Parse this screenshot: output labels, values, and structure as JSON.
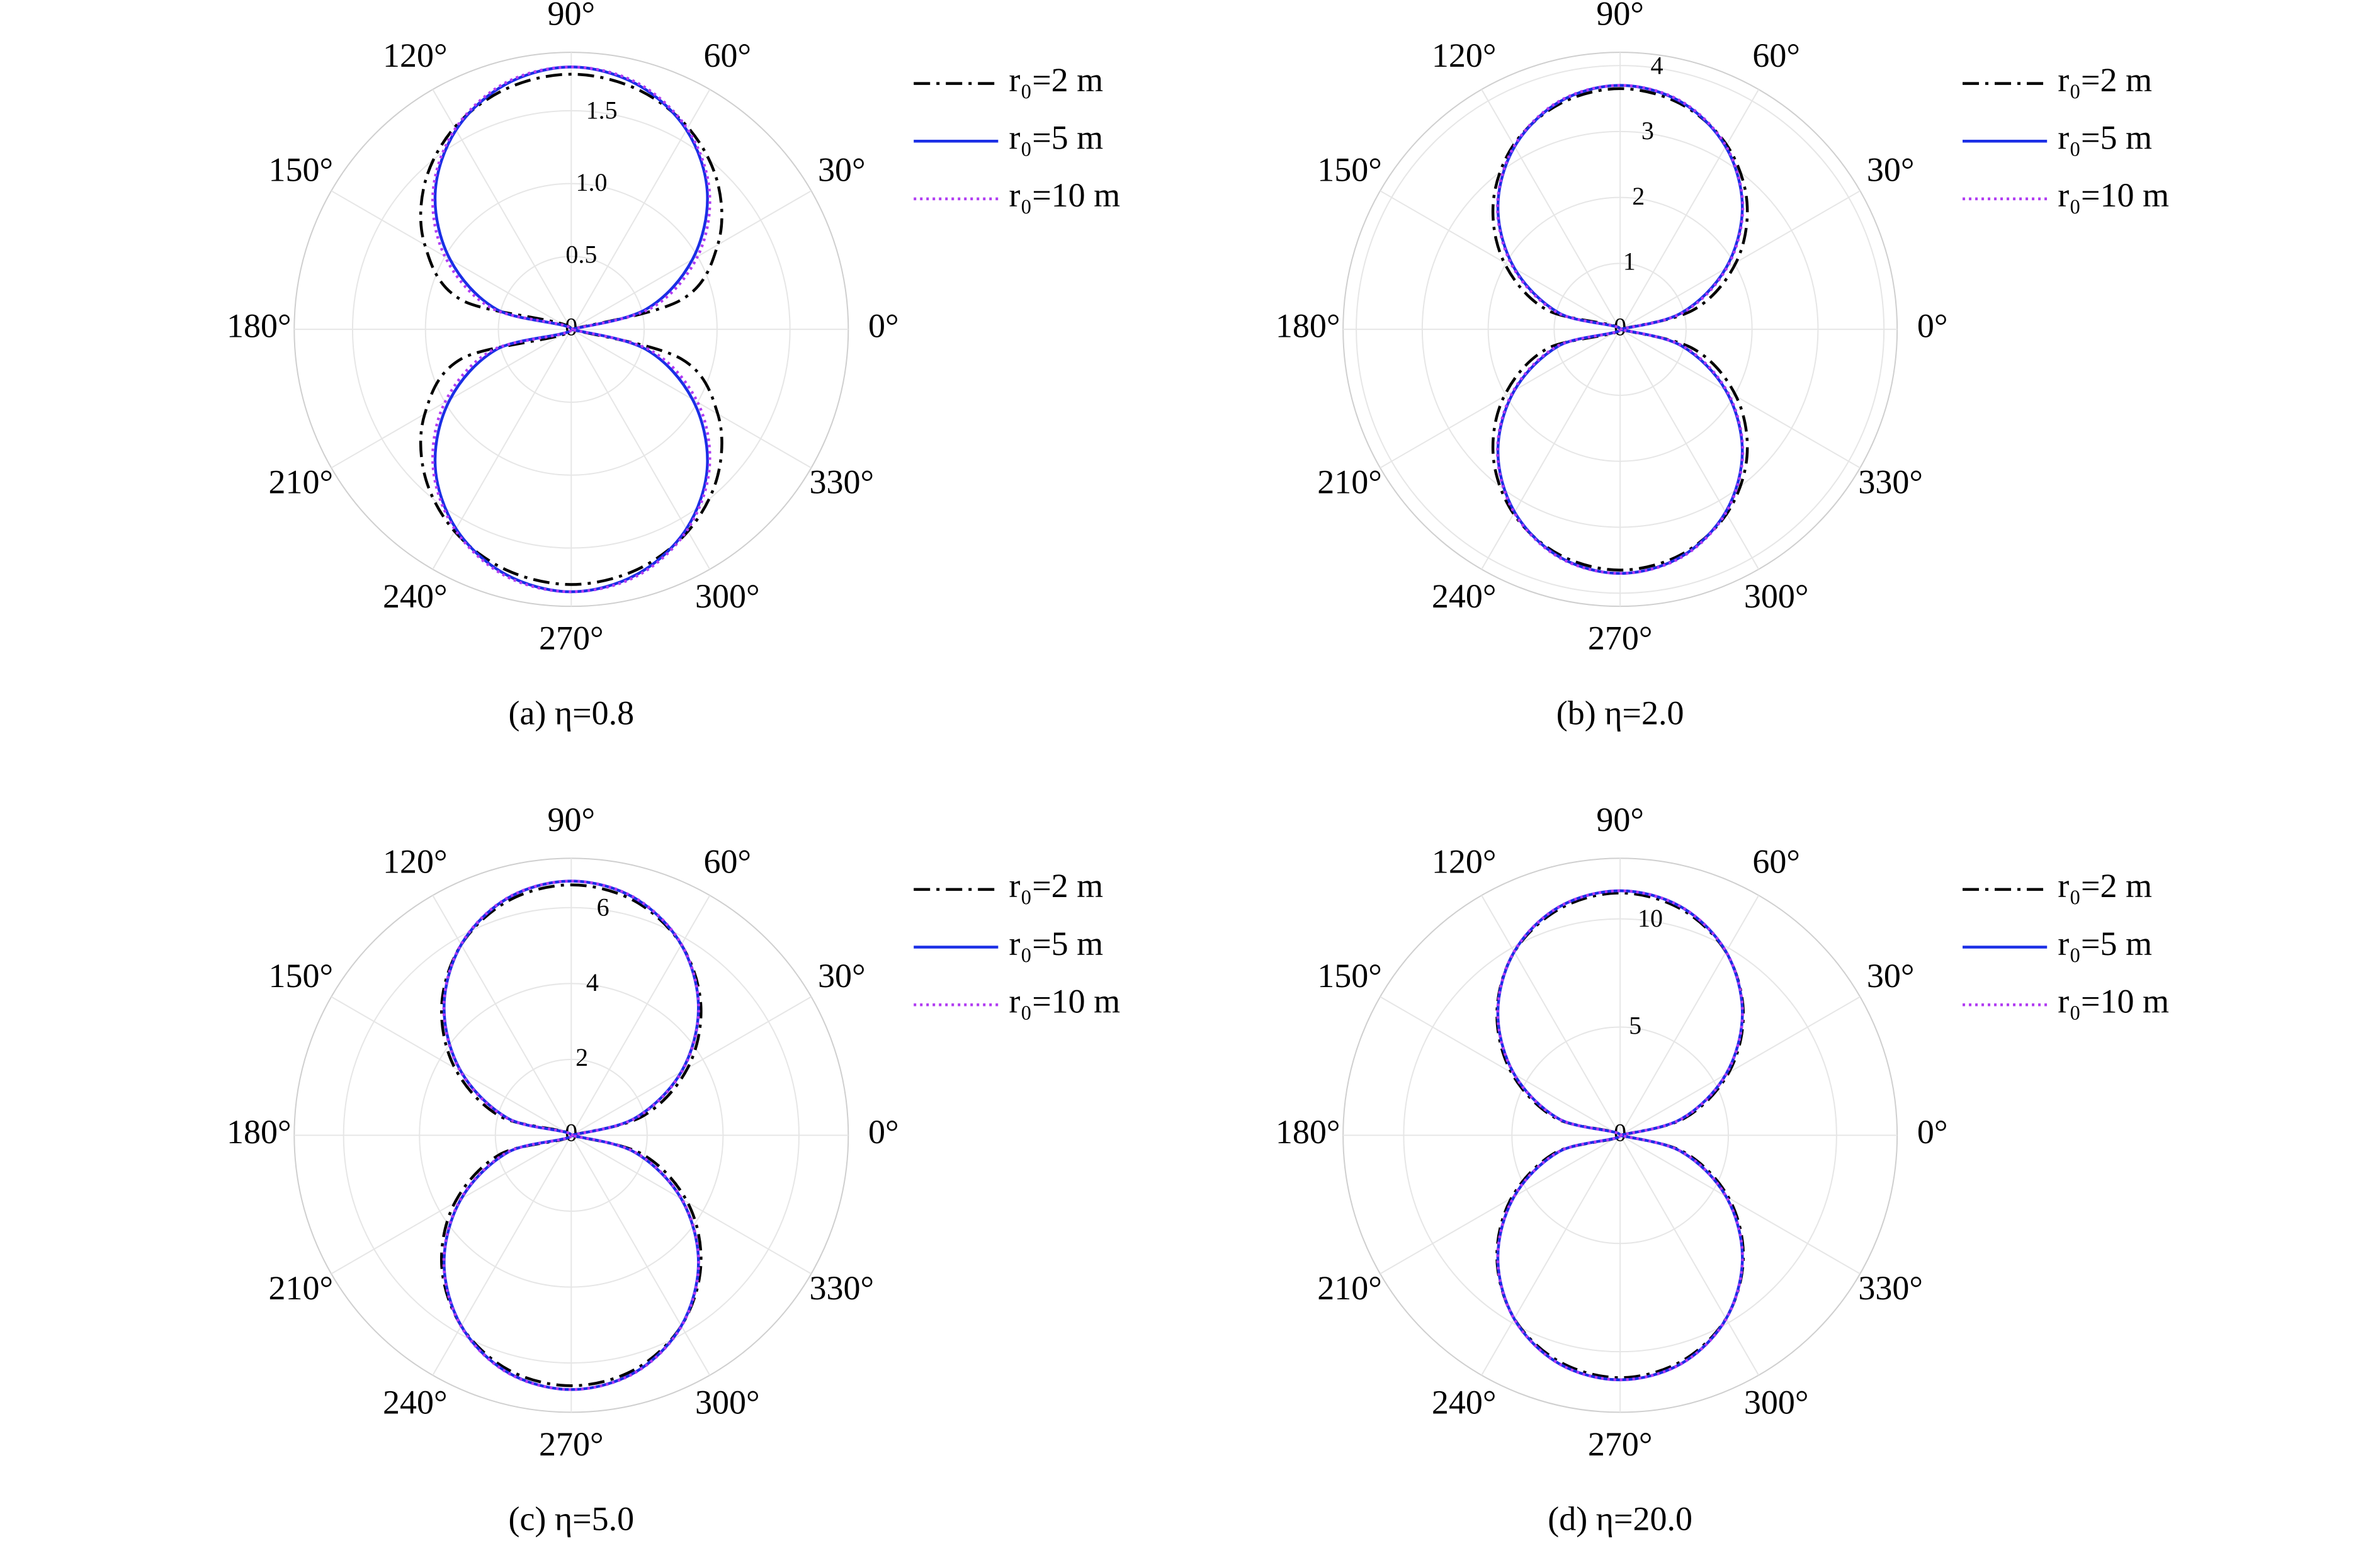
{
  "chart_data": [
    {
      "type": "polar",
      "title": "(a) η=0.8",
      "x": [
        0,
        15,
        30,
        45,
        60,
        75,
        90,
        105,
        120,
        135,
        150,
        165,
        180,
        195,
        210,
        225,
        240,
        255,
        270,
        285,
        300,
        315,
        330,
        345,
        360
      ],
      "xlim": [
        0,
        360
      ],
      "xticks": [
        {
          "value": 0,
          "label": "0°"
        },
        {
          "value": 30,
          "label": "30°"
        },
        {
          "value": 60,
          "label": "60°"
        },
        {
          "value": 90,
          "label": "90°"
        },
        {
          "value": 120,
          "label": "120°"
        },
        {
          "value": 150,
          "label": "150°"
        },
        {
          "value": 180,
          "label": "180°"
        },
        {
          "value": 210,
          "label": "210°"
        },
        {
          "value": 240,
          "label": "240°"
        },
        {
          "value": 270,
          "label": "270°"
        },
        {
          "value": 300,
          "label": "300°"
        },
        {
          "value": 330,
          "label": "330°"
        }
      ],
      "ylim": [
        0,
        1.9
      ],
      "yticks": [
        0,
        0.5,
        {
          "value": 1,
          "label": "1.0"
        },
        1.5
      ],
      "grid": true,
      "series": [
        {
          "name": "r₀=2 m",
          "color": "#000000",
          "linestyle": "dashdot",
          "values": [
            0,
            0.78,
            1.16,
            1.42,
            1.6,
            1.71,
            1.75,
            1.71,
            1.6,
            1.42,
            1.16,
            0.78,
            0,
            0.78,
            1.16,
            1.42,
            1.6,
            1.71,
            1.75,
            1.71,
            1.6,
            1.42,
            1.16,
            0.78,
            0
          ]
        },
        {
          "name": "r₀=5 m",
          "color": "#1a2ee6",
          "linestyle": "solid",
          "values": [
            0,
            0.53,
            0.96,
            1.32,
            1.58,
            1.74,
            1.8,
            1.74,
            1.58,
            1.32,
            0.96,
            0.53,
            0,
            0.53,
            0.96,
            1.32,
            1.58,
            1.74,
            1.8,
            1.74,
            1.58,
            1.32,
            0.96,
            0.53,
            0
          ]
        },
        {
          "name": "r₀=10 m",
          "color": "#b13cf2",
          "linestyle": "dotted",
          "values": [
            0,
            0.57,
            1.0,
            1.34,
            1.59,
            1.75,
            1.8,
            1.75,
            1.59,
            1.34,
            1.0,
            0.57,
            0,
            0.57,
            1.0,
            1.34,
            1.59,
            1.75,
            1.8,
            1.75,
            1.59,
            1.34,
            1.0,
            0.57,
            0
          ]
        }
      ]
    },
    {
      "type": "polar",
      "title": "(b) η=2.0",
      "x": [
        0,
        15,
        30,
        45,
        60,
        75,
        90,
        105,
        120,
        135,
        150,
        165,
        180,
        195,
        210,
        225,
        240,
        255,
        270,
        285,
        300,
        315,
        330,
        345,
        360
      ],
      "xlim": [
        0,
        360
      ],
      "xticks": [
        {
          "value": 0,
          "label": "0°"
        },
        {
          "value": 30,
          "label": "30°"
        },
        {
          "value": 60,
          "label": "60°"
        },
        {
          "value": 90,
          "label": "90°"
        },
        {
          "value": 120,
          "label": "120°"
        },
        {
          "value": 150,
          "label": "150°"
        },
        {
          "value": 180,
          "label": "180°"
        },
        {
          "value": 210,
          "label": "210°"
        },
        {
          "value": 240,
          "label": "240°"
        },
        {
          "value": 270,
          "label": "270°"
        },
        {
          "value": 300,
          "label": "300°"
        },
        {
          "value": 330,
          "label": "330°"
        }
      ],
      "ylim": [
        0,
        4.2
      ],
      "yticks": [
        0,
        1,
        2,
        3,
        4
      ],
      "grid": true,
      "series": [
        {
          "name": "r₀=2 m",
          "color": "#000000",
          "linestyle": "dashdot",
          "values": [
            0,
            1.16,
            2.03,
            2.72,
            3.23,
            3.54,
            3.65,
            3.54,
            3.23,
            2.72,
            2.03,
            1.16,
            0,
            1.16,
            2.03,
            2.72,
            3.23,
            3.54,
            3.65,
            3.54,
            3.23,
            2.72,
            2.03,
            1.16,
            0
          ]
        },
        {
          "name": "r₀=5 m",
          "color": "#1a2ee6",
          "linestyle": "solid",
          "values": [
            0,
            0.96,
            1.85,
            2.62,
            3.2,
            3.57,
            3.7,
            3.57,
            3.2,
            2.62,
            1.85,
            0.96,
            0,
            0.96,
            1.85,
            2.62,
            3.2,
            3.57,
            3.7,
            3.57,
            3.2,
            2.62,
            1.85,
            0.96,
            0
          ]
        },
        {
          "name": "r₀=10 m",
          "color": "#b13cf2",
          "linestyle": "dotted",
          "values": [
            0,
            0.99,
            1.87,
            2.63,
            3.21,
            3.58,
            3.7,
            3.58,
            3.21,
            2.63,
            1.87,
            0.99,
            0,
            0.99,
            1.87,
            2.63,
            3.21,
            3.58,
            3.7,
            3.58,
            3.21,
            2.63,
            1.87,
            0.99,
            0
          ]
        }
      ]
    },
    {
      "type": "polar",
      "title": "(c) η=5.0",
      "x": [
        0,
        15,
        30,
        45,
        60,
        75,
        90,
        105,
        120,
        135,
        150,
        165,
        180,
        195,
        210,
        225,
        240,
        255,
        270,
        285,
        300,
        315,
        330,
        345,
        360
      ],
      "xlim": [
        0,
        360
      ],
      "xticks": [
        {
          "value": 0,
          "label": "0°"
        },
        {
          "value": 30,
          "label": "30°"
        },
        {
          "value": 60,
          "label": "60°"
        },
        {
          "value": 90,
          "label": "90°"
        },
        {
          "value": 120,
          "label": "120°"
        },
        {
          "value": 150,
          "label": "150°"
        },
        {
          "value": 180,
          "label": "180°"
        },
        {
          "value": 210,
          "label": "210°"
        },
        {
          "value": 240,
          "label": "240°"
        },
        {
          "value": 270,
          "label": "270°"
        },
        {
          "value": 300,
          "label": "300°"
        },
        {
          "value": 330,
          "label": "330°"
        }
      ],
      "ylim": [
        0,
        7.3
      ],
      "yticks": [
        0,
        2,
        4,
        6
      ],
      "grid": true,
      "series": [
        {
          "name": "r₀=2 m",
          "color": "#000000",
          "linestyle": "dashdot",
          "values": [
            0,
            1.95,
            3.54,
            4.83,
            5.8,
            6.4,
            6.6,
            6.4,
            5.8,
            4.83,
            3.54,
            1.95,
            0,
            1.95,
            3.54,
            4.83,
            5.8,
            6.4,
            6.6,
            6.4,
            5.8,
            4.83,
            3.54,
            1.95,
            0
          ]
        },
        {
          "name": "r₀=5 m",
          "color": "#1a2ee6",
          "linestyle": "solid",
          "values": [
            0,
            1.73,
            3.35,
            4.74,
            5.8,
            6.47,
            6.7,
            6.47,
            5.8,
            4.74,
            3.35,
            1.73,
            0,
            1.73,
            3.35,
            4.74,
            5.8,
            6.47,
            6.7,
            6.47,
            5.8,
            4.74,
            3.35,
            1.73,
            0
          ]
        },
        {
          "name": "r₀=10 m",
          "color": "#b13cf2",
          "linestyle": "dotted",
          "values": [
            0,
            1.76,
            3.37,
            4.75,
            5.81,
            6.48,
            6.7,
            6.48,
            5.81,
            4.75,
            3.37,
            1.76,
            0,
            1.76,
            3.37,
            4.75,
            5.81,
            6.48,
            6.7,
            6.48,
            5.81,
            4.75,
            3.37,
            1.76,
            0
          ]
        }
      ]
    },
    {
      "type": "polar",
      "title": "(d) η=20.0",
      "x": [
        0,
        15,
        30,
        45,
        60,
        75,
        90,
        105,
        120,
        135,
        150,
        165,
        180,
        195,
        210,
        225,
        240,
        255,
        270,
        285,
        300,
        315,
        330,
        345,
        360
      ],
      "xlim": [
        0,
        360
      ],
      "xticks": [
        {
          "value": 0,
          "label": "0°"
        },
        {
          "value": 30,
          "label": "30°"
        },
        {
          "value": 60,
          "label": "60°"
        },
        {
          "value": 90,
          "label": "90°"
        },
        {
          "value": 120,
          "label": "120°"
        },
        {
          "value": 150,
          "label": "150°"
        },
        {
          "value": 180,
          "label": "180°"
        },
        {
          "value": 210,
          "label": "210°"
        },
        {
          "value": 240,
          "label": "240°"
        },
        {
          "value": 270,
          "label": "270°"
        },
        {
          "value": 300,
          "label": "300°"
        },
        {
          "value": 330,
          "label": "330°"
        }
      ],
      "ylim": [
        0,
        12.8
      ],
      "yticks": [
        0,
        5,
        10
      ],
      "grid": true,
      "series": [
        {
          "name": "r₀=2 m",
          "color": "#000000",
          "linestyle": "dashdot",
          "values": [
            0,
            3.1,
            5.8,
            8.05,
            9.78,
            10.83,
            11.2,
            10.83,
            9.78,
            8.05,
            5.8,
            3.1,
            0,
            3.1,
            5.8,
            8.05,
            9.78,
            10.83,
            11.2,
            10.83,
            9.78,
            8.05,
            5.8,
            3.1,
            0
          ]
        },
        {
          "name": "r₀=5 m",
          "color": "#1a2ee6",
          "linestyle": "solid",
          "values": [
            0,
            2.93,
            5.65,
            7.99,
            9.79,
            10.92,
            11.3,
            10.92,
            9.79,
            7.99,
            5.65,
            2.93,
            0,
            2.93,
            5.65,
            7.99,
            9.79,
            10.92,
            11.3,
            10.92,
            9.79,
            7.99,
            5.65,
            2.93,
            0
          ]
        },
        {
          "name": "r₀=10 m",
          "color": "#b13cf2",
          "linestyle": "dotted",
          "values": [
            0,
            2.95,
            5.66,
            8.0,
            9.8,
            10.93,
            11.3,
            10.93,
            9.8,
            8.0,
            5.66,
            2.95,
            0,
            2.95,
            5.66,
            8.0,
            9.8,
            10.93,
            11.3,
            10.93,
            9.8,
            8.0,
            5.66,
            2.95,
            0
          ]
        }
      ]
    }
  ]
}
